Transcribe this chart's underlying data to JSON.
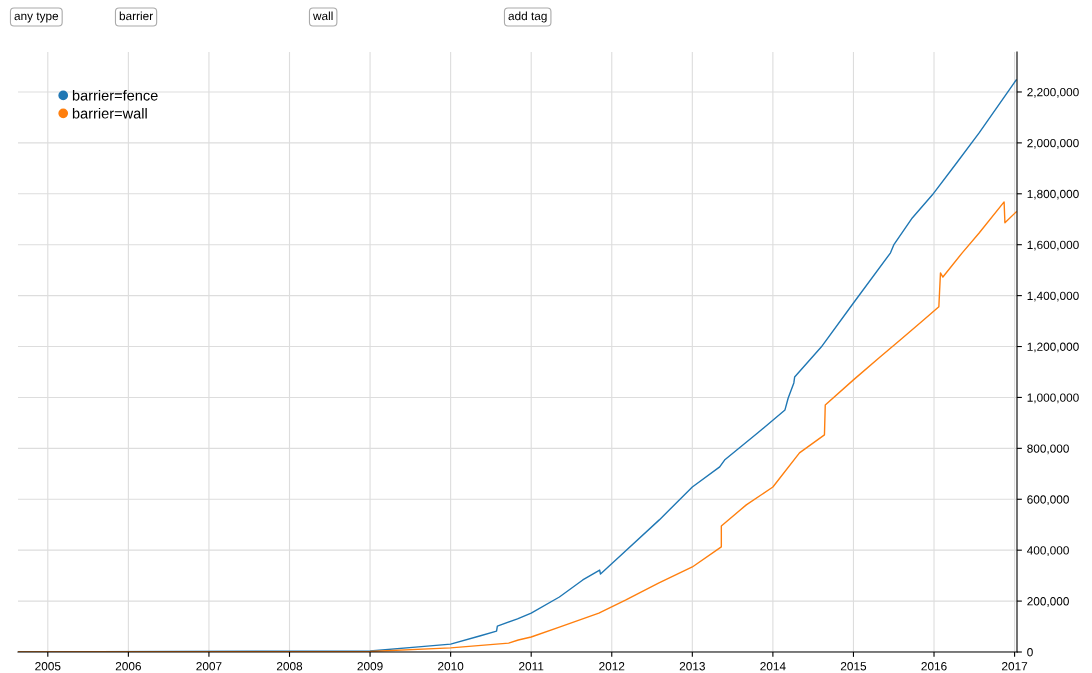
{
  "chart_data": {
    "type": "line",
    "annotations": [
      "any type",
      "barrier",
      "wall",
      "add tag"
    ],
    "series": [
      {
        "name": "barrier=fence",
        "color": "#1f77b4",
        "x": [
          2004.63,
          2009.0,
          2009.6,
          2010.0,
          2010.36,
          2010.57,
          2010.58,
          2010.83,
          2011.0,
          2011.35,
          2011.64,
          2011.85,
          2011.86,
          2012.09,
          2012.59,
          2013.0,
          2013.34,
          2013.4,
          2013.81,
          2014.15,
          2014.19,
          2014.26,
          2014.27,
          2014.6,
          2015.0,
          2015.46,
          2015.5,
          2015.73,
          2015.98,
          2016.28,
          2016.56,
          2017.02
        ],
        "values": [
          0,
          4000,
          20000,
          31000,
          63000,
          82000,
          102000,
          130000,
          153000,
          216000,
          283000,
          322000,
          306000,
          373000,
          519000,
          648000,
          727000,
          754000,
          860000,
          951000,
          998000,
          1057000,
          1080000,
          1198000,
          1371000,
          1568000,
          1599000,
          1705000,
          1796000,
          1921000,
          2039000,
          2247000
        ]
      },
      {
        "name": "barrier=wall",
        "color": "#ff7f0e",
        "x": [
          2004.63,
          2009.0,
          2010.0,
          2010.72,
          2010.84,
          2011.0,
          2011.35,
          2011.84,
          2012.17,
          2012.58,
          2013.0,
          2013.36,
          2013.36,
          2013.67,
          2014.0,
          2014.33,
          2014.64,
          2014.65,
          2015.0,
          2015.33,
          2015.58,
          2015.87,
          2016.06,
          2016.08,
          2016.11,
          2016.35,
          2016.56,
          2016.87,
          2016.88,
          2017.02
        ],
        "values": [
          0,
          2000,
          16000,
          35000,
          47000,
          59000,
          98000,
          153000,
          204000,
          271000,
          334000,
          413000,
          495000,
          578000,
          648000,
          782000,
          853000,
          970000,
          1069000,
          1159000,
          1226000,
          1304000,
          1356000,
          1489000,
          1473000,
          1568000,
          1646000,
          1768000,
          1686000,
          1729000
        ]
      }
    ],
    "xlim": [
      2004.63,
      2017.03
    ],
    "xticks": [
      2005,
      2006,
      2007,
      2008,
      2009,
      2010,
      2011,
      2012,
      2013,
      2014,
      2015,
      2016,
      2017
    ],
    "ylim": [
      0,
      2357000
    ],
    "yticks": [
      0,
      {
        "value": 200000,
        "label": "200,000"
      },
      {
        "value": 400000,
        "label": "400,000"
      },
      {
        "value": 600000,
        "label": "600,000"
      },
      {
        "value": 800000,
        "label": "800,000"
      },
      {
        "value": 1000000,
        "label": "1,000,000"
      },
      {
        "value": 1200000,
        "label": "1,200,000"
      },
      {
        "value": 1400000,
        "label": "1,400,000"
      },
      {
        "value": 1600000,
        "label": "1,600,000"
      },
      {
        "value": 1800000,
        "label": "1,800,000"
      },
      {
        "value": 2000000,
        "label": "2,000,000"
      },
      {
        "value": 2200000,
        "label": "2,200,000"
      }
    ],
    "grid": true,
    "legend": "top left",
    "marker": "none",
    "line_style": "solid"
  }
}
